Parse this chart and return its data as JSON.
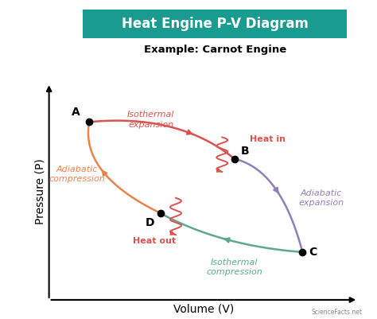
{
  "title": "Heat Engine P-V Diagram",
  "subtitle": "Example: Carnot Engine",
  "title_bg_color": "#1a9b8f",
  "title_text_color": "white",
  "xlabel": "Volume (V)",
  "ylabel": "Pressure (P)",
  "background_color": "white",
  "points": {
    "A": [
      0.13,
      0.82
    ],
    "B": [
      0.6,
      0.65
    ],
    "C": [
      0.82,
      0.22
    ],
    "D": [
      0.36,
      0.4
    ]
  },
  "curve_AB_color": "#d9534f",
  "curve_BC_color": "#9080b8",
  "curve_CD_color": "#5caa8a",
  "curve_DA_color": "#e8834e",
  "wavy_color": "#d9534f",
  "point_color": "black",
  "point_size": 6,
  "label_isothermal_expansion": "Isothermal\nexpansion",
  "label_heat_in": "Heat in",
  "label_adiabatic_expansion": "Adiabatic\nexpansion",
  "label_isothermal_compression": "Isothermal\ncompression",
  "label_heat_out": "Heat out",
  "label_adiabatic_compression": "Adiabatic\ncompression",
  "watermark": "ScienceFacts.net"
}
